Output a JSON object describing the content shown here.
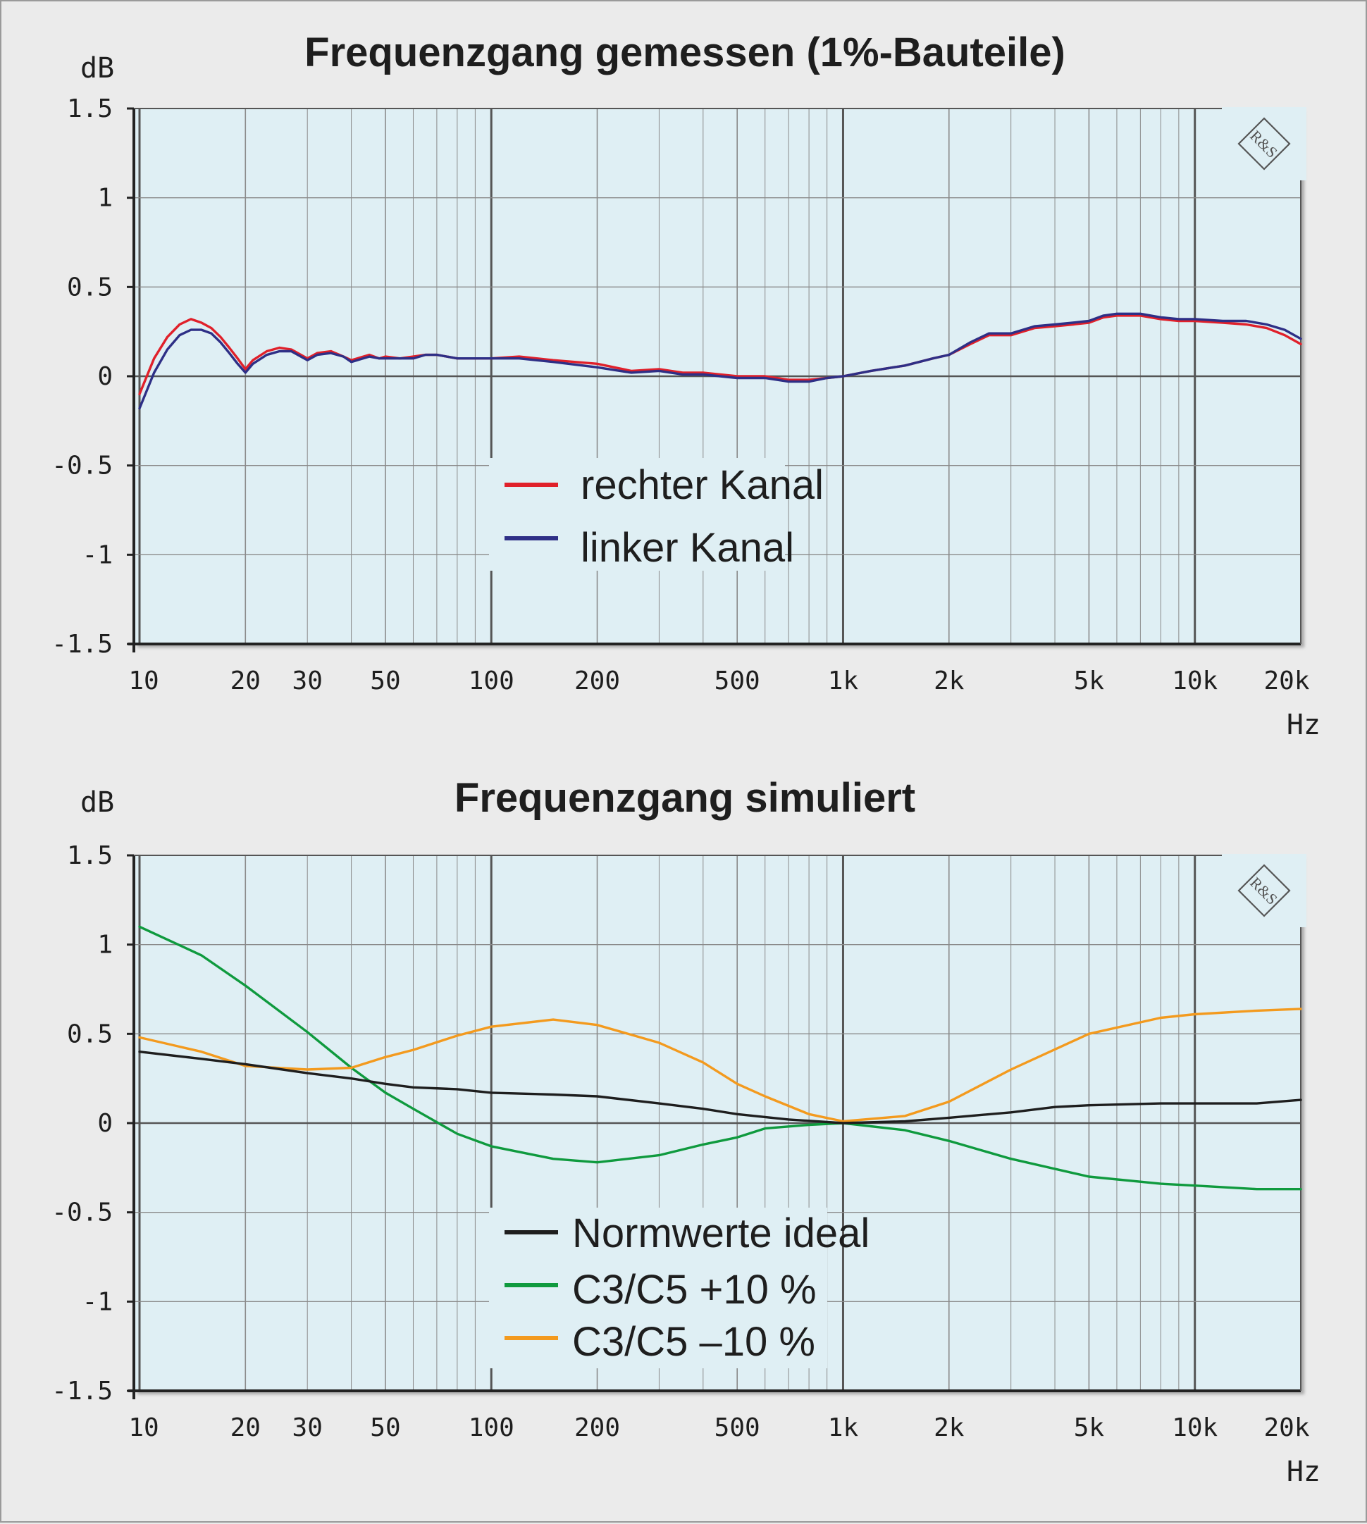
{
  "colors": {
    "background": "#ebebeb",
    "plot_background": "#dfeff4",
    "grid": "#8a8a8a",
    "red": "#e0202a",
    "blue": "#2e2f86",
    "black": "#1e1e1e",
    "green": "#0f9a3e",
    "orange": "#f39a1e"
  },
  "icons": {
    "logo": "rohde-schwarz-logo",
    "logo_letters": "R&S"
  },
  "chart_data": [
    {
      "type": "line",
      "title": "Frequenzgang gemessen (1%-Bauteile)",
      "ylabel": "dB",
      "xlabel": "Hz",
      "xscale": "log",
      "xlim": [
        10,
        20000
      ],
      "ylim": [
        -1.5,
        1.5
      ],
      "yticks": [
        "1.5",
        "1",
        "0.5",
        "0",
        "-0.5",
        "-1",
        "-1.5"
      ],
      "xticks": [
        {
          "value": 10,
          "label": "10"
        },
        {
          "value": 20,
          "label": "20"
        },
        {
          "value": 30,
          "label": "30"
        },
        {
          "value": 50,
          "label": "50"
        },
        {
          "value": 100,
          "label": "100"
        },
        {
          "value": 200,
          "label": "200"
        },
        {
          "value": 500,
          "label": "500"
        },
        {
          "value": 1000,
          "label": "1k"
        },
        {
          "value": 2000,
          "label": "2k"
        },
        {
          "value": 5000,
          "label": "5k"
        },
        {
          "value": 10000,
          "label": "10k"
        },
        {
          "value": 20000,
          "label": "20k"
        }
      ],
      "grid": true,
      "legend_position": "center",
      "series": [
        {
          "name": "rechter Kanal",
          "color": "#e0202a",
          "x": [
            10,
            11,
            12,
            13,
            14,
            15,
            16,
            17,
            18,
            19,
            20,
            21,
            23,
            25,
            27,
            30,
            32,
            35,
            38,
            40,
            45,
            48,
            50,
            55,
            60,
            65,
            70,
            80,
            90,
            100,
            120,
            150,
            200,
            250,
            300,
            350,
            400,
            500,
            600,
            700,
            800,
            900,
            1000,
            1200,
            1500,
            1800,
            2000,
            2300,
            2600,
            3000,
            3500,
            4000,
            4500,
            5000,
            5500,
            6000,
            7000,
            8000,
            9000,
            10000,
            12000,
            14000,
            16000,
            18000,
            20000
          ],
          "y": [
            -0.1,
            0.1,
            0.22,
            0.29,
            0.32,
            0.3,
            0.27,
            0.22,
            0.16,
            0.1,
            0.04,
            0.09,
            0.14,
            0.16,
            0.15,
            0.1,
            0.13,
            0.14,
            0.11,
            0.09,
            0.12,
            0.1,
            0.11,
            0.1,
            0.11,
            0.12,
            0.12,
            0.1,
            0.1,
            0.1,
            0.11,
            0.09,
            0.07,
            0.03,
            0.04,
            0.02,
            0.02,
            0.0,
            0.0,
            -0.02,
            -0.02,
            -0.01,
            0.0,
            0.03,
            0.06,
            0.1,
            0.12,
            0.18,
            0.23,
            0.23,
            0.27,
            0.28,
            0.29,
            0.3,
            0.33,
            0.34,
            0.34,
            0.32,
            0.31,
            0.31,
            0.3,
            0.29,
            0.27,
            0.23,
            0.18
          ]
        },
        {
          "name": "linker Kanal",
          "color": "#2e2f86",
          "x": [
            10,
            11,
            12,
            13,
            14,
            15,
            16,
            17,
            18,
            19,
            20,
            21,
            23,
            25,
            27,
            30,
            32,
            35,
            38,
            40,
            45,
            48,
            50,
            55,
            60,
            65,
            70,
            80,
            90,
            100,
            120,
            150,
            200,
            250,
            300,
            350,
            400,
            500,
            600,
            700,
            800,
            900,
            1000,
            1200,
            1500,
            1800,
            2000,
            2300,
            2600,
            3000,
            3500,
            4000,
            4500,
            5000,
            5500,
            6000,
            7000,
            8000,
            9000,
            10000,
            12000,
            14000,
            16000,
            18000,
            20000
          ],
          "y": [
            -0.18,
            0.02,
            0.15,
            0.23,
            0.26,
            0.26,
            0.24,
            0.19,
            0.13,
            0.07,
            0.02,
            0.07,
            0.12,
            0.14,
            0.14,
            0.09,
            0.12,
            0.13,
            0.11,
            0.08,
            0.11,
            0.1,
            0.1,
            0.1,
            0.1,
            0.12,
            0.12,
            0.1,
            0.1,
            0.1,
            0.1,
            0.08,
            0.05,
            0.02,
            0.03,
            0.01,
            0.01,
            -0.01,
            -0.01,
            -0.03,
            -0.03,
            -0.01,
            0.0,
            0.03,
            0.06,
            0.1,
            0.12,
            0.19,
            0.24,
            0.24,
            0.28,
            0.29,
            0.3,
            0.31,
            0.34,
            0.35,
            0.35,
            0.33,
            0.32,
            0.32,
            0.31,
            0.31,
            0.29,
            0.26,
            0.21
          ]
        }
      ]
    },
    {
      "type": "line",
      "title": "Frequenzgang simuliert",
      "ylabel": "dB",
      "xlabel": "Hz",
      "xscale": "log",
      "xlim": [
        10,
        20000
      ],
      "ylim": [
        -1.5,
        1.5
      ],
      "yticks": [
        "1.5",
        "1",
        "0.5",
        "0",
        "-0.5",
        "-1",
        "-1.5"
      ],
      "xticks": [
        {
          "value": 10,
          "label": "10"
        },
        {
          "value": 20,
          "label": "20"
        },
        {
          "value": 30,
          "label": "30"
        },
        {
          "value": 50,
          "label": "50"
        },
        {
          "value": 100,
          "label": "100"
        },
        {
          "value": 200,
          "label": "200"
        },
        {
          "value": 500,
          "label": "500"
        },
        {
          "value": 1000,
          "label": "1k"
        },
        {
          "value": 2000,
          "label": "2k"
        },
        {
          "value": 5000,
          "label": "5k"
        },
        {
          "value": 10000,
          "label": "10k"
        },
        {
          "value": 20000,
          "label": "20k"
        }
      ],
      "grid": true,
      "legend_position": "center",
      "series": [
        {
          "name": "Normwerte ideal",
          "color": "#1e1e1e",
          "x": [
            10,
            15,
            20,
            30,
            40,
            50,
            60,
            80,
            100,
            150,
            200,
            300,
            400,
            500,
            700,
            1000,
            1500,
            2000,
            3000,
            4000,
            5000,
            8000,
            10000,
            15000,
            20000
          ],
          "y": [
            0.4,
            0.36,
            0.33,
            0.28,
            0.25,
            0.22,
            0.2,
            0.19,
            0.17,
            0.16,
            0.15,
            0.11,
            0.08,
            0.05,
            0.02,
            0.0,
            0.01,
            0.03,
            0.06,
            0.09,
            0.1,
            0.11,
            0.11,
            0.11,
            0.13
          ]
        },
        {
          "name": "C3/C5 +10 %",
          "color": "#0f9a3e",
          "x": [
            10,
            15,
            20,
            30,
            40,
            50,
            60,
            80,
            100,
            150,
            200,
            300,
            400,
            500,
            600,
            800,
            1000,
            1500,
            2000,
            3000,
            5000,
            8000,
            10000,
            15000,
            20000
          ],
          "y": [
            1.1,
            0.94,
            0.77,
            0.51,
            0.31,
            0.17,
            0.08,
            -0.06,
            -0.13,
            -0.2,
            -0.22,
            -0.18,
            -0.12,
            -0.08,
            -0.03,
            -0.01,
            0.0,
            -0.04,
            -0.1,
            -0.2,
            -0.3,
            -0.34,
            -0.35,
            -0.37,
            -0.37
          ]
        },
        {
          "name": "C3/C5 –10 %",
          "color": "#f39a1e",
          "x": [
            10,
            15,
            20,
            30,
            40,
            50,
            60,
            80,
            100,
            150,
            200,
            300,
            400,
            500,
            600,
            800,
            1000,
            1500,
            2000,
            3000,
            5000,
            8000,
            10000,
            15000,
            20000
          ],
          "y": [
            0.48,
            0.4,
            0.32,
            0.3,
            0.31,
            0.37,
            0.41,
            0.49,
            0.54,
            0.58,
            0.55,
            0.45,
            0.34,
            0.22,
            0.15,
            0.05,
            0.01,
            0.04,
            0.12,
            0.3,
            0.5,
            0.59,
            0.61,
            0.63,
            0.64
          ]
        }
      ]
    }
  ]
}
